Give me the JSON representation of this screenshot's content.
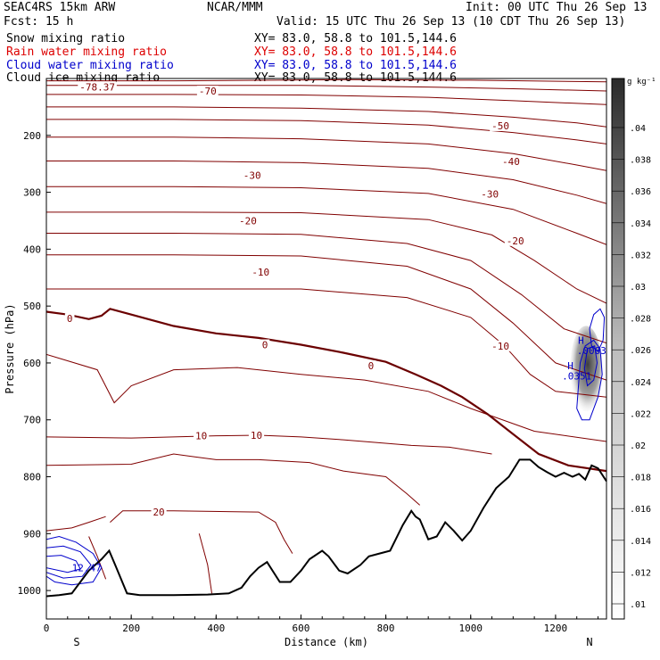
{
  "header": {
    "model": "SEAC4RS 15km ARW",
    "org": "NCAR/MMM",
    "init": "Init: 00 UTC Thu 26 Sep 13",
    "fcst": "Fcst:   15 h",
    "valid": "Valid: 15 UTC Thu 26 Sep 13 (10 CDT Thu 26 Sep 13)"
  },
  "fields": [
    {
      "name": "Snow mixing ratio",
      "xy": "XY=  83.0, 58.8 to 101.5,144.6",
      "color": "#000000"
    },
    {
      "name": "Rain water mixing ratio",
      "xy": "XY=  83.0, 58.8 to 101.5,144.6",
      "color": "#dd0000"
    },
    {
      "name": "Cloud water mixing ratio",
      "xy": "XY=  83.0, 58.8 to 101.5,144.6",
      "color": "#0000cc"
    },
    {
      "name": "Cloud ice mixing ratio",
      "xy": "XY=  83.0, 58.8 to 101.5,144.6",
      "color": "#000000"
    }
  ],
  "chart_data": {
    "type": "cross-section",
    "xlabel": "Distance (km)",
    "ylabel": "Pressure (hPa)",
    "xlim": [
      0,
      1320
    ],
    "ylim": [
      1050,
      100
    ],
    "xticks": [
      0,
      200,
      400,
      600,
      800,
      1000,
      1200
    ],
    "yticks": [
      200,
      300,
      400,
      500,
      600,
      700,
      800,
      900,
      1000
    ],
    "endpoint_labels": {
      "left": "S",
      "right": "N"
    },
    "colorbar": {
      "unit": "g kg⁻¹",
      "ticks": [
        ".01",
        ".012",
        ".014",
        ".016",
        ".018",
        ".02",
        ".022",
        ".024",
        ".026",
        ".028",
        ".03",
        ".032",
        ".034",
        ".036",
        ".038",
        ".04"
      ]
    },
    "temperature_contour_color": "#800000",
    "temperature_labels": [
      {
        "text": "-78.37",
        "x": 120,
        "p": 115
      },
      {
        "text": "-70",
        "x": 380,
        "p": 122
      },
      {
        "text": "-50",
        "x": 1070,
        "p": 183
      },
      {
        "text": "-40",
        "x": 1095,
        "p": 246
      },
      {
        "text": "-30",
        "x": 485,
        "p": 270
      },
      {
        "text": "-30",
        "x": 1045,
        "p": 303
      },
      {
        "text": "-20",
        "x": 475,
        "p": 350
      },
      {
        "text": "-20",
        "x": 1105,
        "p": 385
      },
      {
        "text": "-10",
        "x": 505,
        "p": 440
      },
      {
        "text": "-10",
        "x": 1070,
        "p": 570
      },
      {
        "text": "0",
        "x": 55,
        "p": 522
      },
      {
        "text": "0",
        "x": 515,
        "p": 568
      },
      {
        "text": "0",
        "x": 765,
        "p": 605
      },
      {
        "text": "10",
        "x": 365,
        "p": 728
      },
      {
        "text": "10",
        "x": 495,
        "p": 727
      },
      {
        "text": "20",
        "x": 265,
        "p": 862
      }
    ],
    "cloud_labels": [
      {
        "text": "H",
        "x": 1260,
        "p": 560
      },
      {
        "text": ".0003",
        "x": 1285,
        "p": 578
      },
      {
        "text": "H",
        "x": 1235,
        "p": 605
      },
      {
        "text": ".0351",
        "x": 1250,
        "p": 623
      },
      {
        "text": "12.47",
        "x": 95,
        "p": 960
      }
    ],
    "terrain": [
      [
        0,
        1010
      ],
      [
        30,
        1008
      ],
      [
        60,
        1005
      ],
      [
        80,
        985
      ],
      [
        100,
        965
      ],
      [
        130,
        945
      ],
      [
        148,
        930
      ],
      [
        165,
        960
      ],
      [
        190,
        1005
      ],
      [
        220,
        1008
      ],
      [
        300,
        1008
      ],
      [
        380,
        1007
      ],
      [
        430,
        1005
      ],
      [
        460,
        995
      ],
      [
        480,
        975
      ],
      [
        500,
        960
      ],
      [
        520,
        950
      ],
      [
        550,
        985
      ],
      [
        575,
        985
      ],
      [
        600,
        965
      ],
      [
        620,
        945
      ],
      [
        650,
        930
      ],
      [
        665,
        940
      ],
      [
        690,
        965
      ],
      [
        710,
        970
      ],
      [
        740,
        955
      ],
      [
        760,
        940
      ],
      [
        785,
        935
      ],
      [
        810,
        930
      ],
      [
        840,
        885
      ],
      [
        860,
        860
      ],
      [
        870,
        870
      ],
      [
        880,
        875
      ],
      [
        900,
        910
      ],
      [
        920,
        905
      ],
      [
        940,
        880
      ],
      [
        960,
        895
      ],
      [
        980,
        912
      ],
      [
        1000,
        895
      ],
      [
        1030,
        855
      ],
      [
        1060,
        820
      ],
      [
        1090,
        800
      ],
      [
        1115,
        770
      ],
      [
        1140,
        770
      ],
      [
        1160,
        783
      ],
      [
        1180,
        792
      ],
      [
        1200,
        800
      ],
      [
        1220,
        793
      ],
      [
        1240,
        800
      ],
      [
        1255,
        795
      ],
      [
        1270,
        805
      ],
      [
        1285,
        780
      ],
      [
        1300,
        785
      ],
      [
        1320,
        808
      ]
    ]
  }
}
